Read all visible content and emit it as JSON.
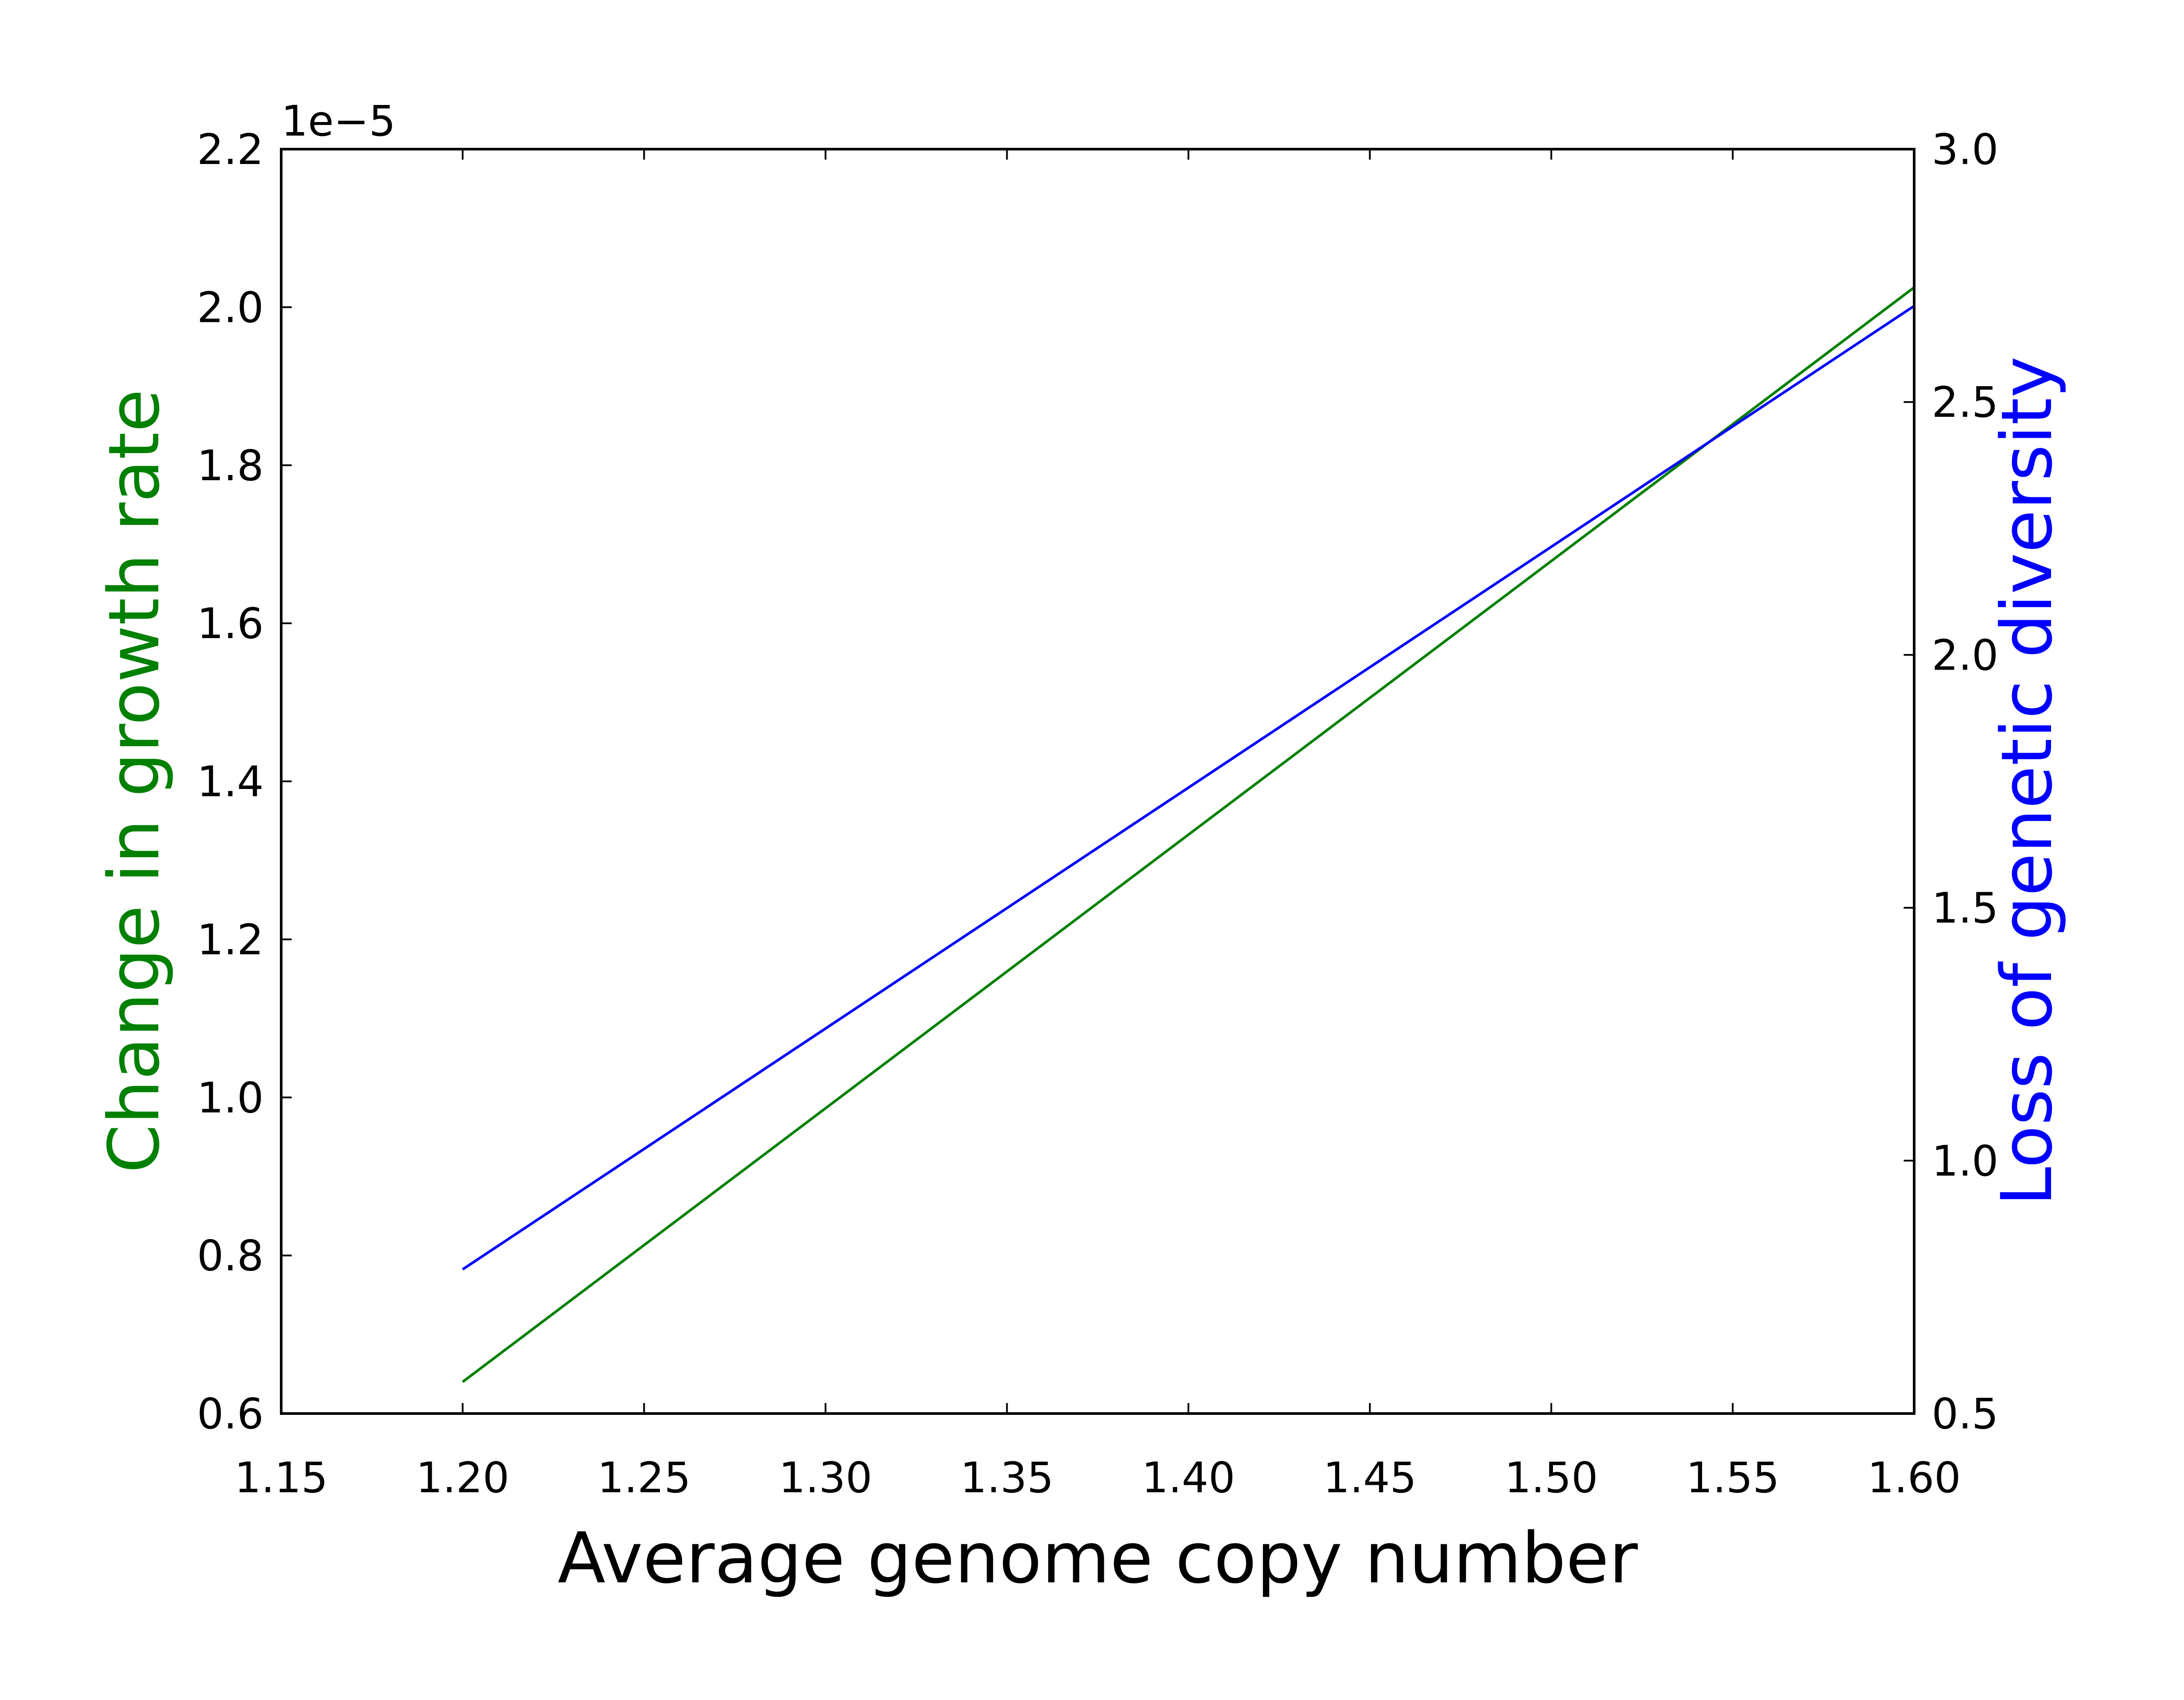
{
  "chart_data": {
    "type": "line",
    "xlabel": "Average genome copy number",
    "ylabel_left": "Change in growth rate",
    "ylabel_right": "Loss of genetic diversity",
    "offset_label": "1e−5",
    "xlim": [
      1.15,
      1.6
    ],
    "ylim_left": [
      0.6,
      2.2
    ],
    "ylim_right": [
      0.5,
      3.0
    ],
    "x_ticks": [
      "1.15",
      "1.20",
      "1.25",
      "1.30",
      "1.35",
      "1.40",
      "1.45",
      "1.50",
      "1.55",
      "1.60"
    ],
    "y_left_ticks": [
      "0.6",
      "0.8",
      "1.0",
      "1.2",
      "1.4",
      "1.6",
      "1.8",
      "2.0",
      "2.2"
    ],
    "y_right_ticks": [
      "0.5",
      "1.0",
      "1.5",
      "2.0",
      "2.5",
      "3.0"
    ],
    "series": [
      {
        "axis": "left",
        "color": "#008000",
        "x": [
          1.2,
          1.6
        ],
        "y": [
          0.64,
          2.025
        ]
      },
      {
        "axis": "right",
        "color": "#0000ff",
        "x": [
          1.2,
          1.6
        ],
        "y": [
          0.785,
          2.69
        ]
      }
    ],
    "grid": false
  }
}
